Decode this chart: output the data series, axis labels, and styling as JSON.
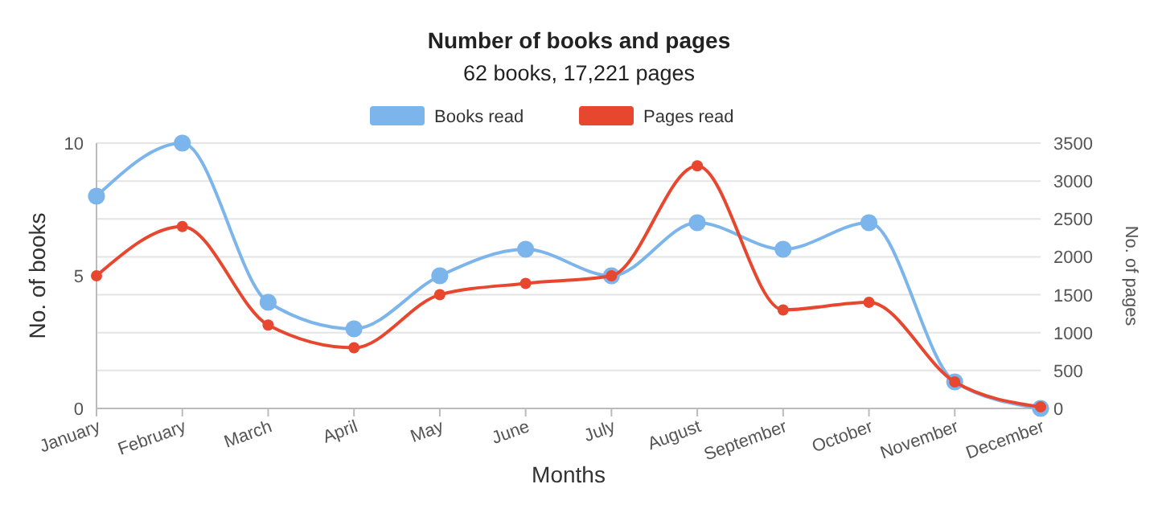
{
  "chart_data": {
    "type": "line",
    "title": "Number of books and pages",
    "subtitle": "62 books, 17,221 pages",
    "xlabel": "Months",
    "ylabel": "No. of books",
    "y2label": "No. of pages",
    "categories": [
      "January",
      "February",
      "March",
      "April",
      "May",
      "June",
      "July",
      "August",
      "September",
      "October",
      "November",
      "December"
    ],
    "series": [
      {
        "name": "Books read",
        "color": "#7cb5ec",
        "values": [
          8,
          10,
          4,
          3,
          5,
          6,
          5,
          7,
          6,
          7,
          1,
          0
        ]
      },
      {
        "name": "Pages read",
        "color": "#e8472f",
        "axis": "y2",
        "values": [
          1750,
          2400,
          1100,
          800,
          1500,
          1650,
          1750,
          3200,
          1300,
          1400,
          350,
          20
        ]
      }
    ],
    "ylim": [
      0,
      10
    ],
    "yticks": [
      0,
      5,
      10
    ],
    "y2lim": [
      0,
      3500
    ],
    "y2ticks": [
      0,
      500,
      1000,
      1500,
      2000,
      2500,
      3000,
      3500
    ],
    "grid": "y2",
    "legend": "top",
    "marker": "circle",
    "line_style": "solid"
  }
}
